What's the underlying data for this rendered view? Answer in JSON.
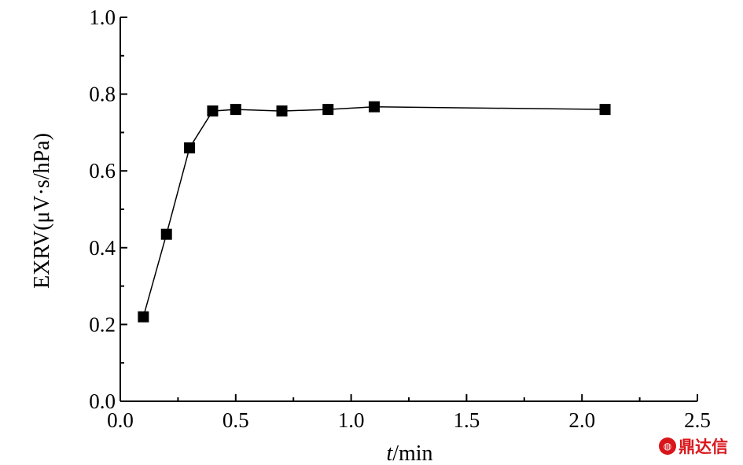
{
  "chart_data": {
    "type": "line",
    "xlabel_italic": "t",
    "xlabel_rest": "/min",
    "ylabel": "EXRV(μV·s/hPa)",
    "xlim": [
      0.0,
      2.5
    ],
    "ylim": [
      0.0,
      1.0
    ],
    "x_ticks": [
      0.0,
      0.5,
      1.0,
      1.5,
      2.0,
      2.5
    ],
    "x_tick_labels": [
      "0.0",
      "0.5",
      "1.0",
      "1.5",
      "2.0",
      "2.5"
    ],
    "y_ticks": [
      0.0,
      0.2,
      0.4,
      0.6,
      0.8,
      1.0
    ],
    "y_tick_labels": [
      "0.0",
      "0.2",
      "0.4",
      "0.6",
      "0.8",
      "1.0"
    ],
    "grid": false,
    "marker": "square",
    "color": "#000000",
    "series": [
      {
        "x": [
          0.1,
          0.2,
          0.3,
          0.4,
          0.5,
          0.7,
          0.9,
          1.1,
          2.1
        ],
        "y": [
          0.22,
          0.435,
          0.66,
          0.756,
          0.76,
          0.756,
          0.76,
          0.767,
          0.76
        ]
      }
    ]
  },
  "watermark": {
    "logo_icon": "dingdaxin-logo-icon",
    "text": "鼎达信"
  }
}
